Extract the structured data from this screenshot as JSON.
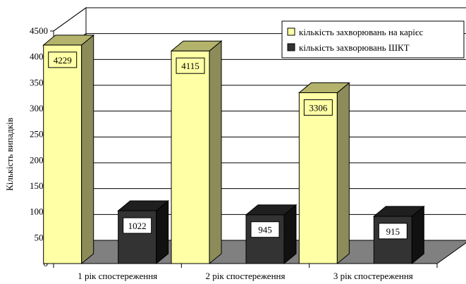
{
  "chart_data": {
    "type": "bar",
    "categories": [
      "1 рік спостереження",
      "2 рік спостереження",
      "3 рік спостереження"
    ],
    "series": [
      {
        "name": "кількість захворювань на карієс",
        "values": [
          4229,
          4115,
          3306
        ]
      },
      {
        "name": "кількість захворювань ШКТ",
        "values": [
          1022,
          945,
          915
        ]
      }
    ],
    "data_labels": [
      [
        "4229",
        "4115",
        "3306"
      ],
      [
        "1022",
        "945",
        "915"
      ]
    ],
    "ylabel": "Кількість випадків",
    "xlabel": "",
    "ylim": [
      0,
      4500
    ],
    "yticks": [
      0,
      500,
      1000,
      1500,
      2000,
      2500,
      3000,
      3500,
      4000,
      4500
    ],
    "grid": true,
    "legend_position": "top-right",
    "style": "3d",
    "colors": {
      "series_1_front": "#ffffa6",
      "series_1_side": "#8c8c5a",
      "series_1_top": "#b3b36b",
      "series_2_front": "#333333",
      "series_2_side": "#111111",
      "series_2_top": "#1f1f1f",
      "floor": "#808080"
    }
  }
}
